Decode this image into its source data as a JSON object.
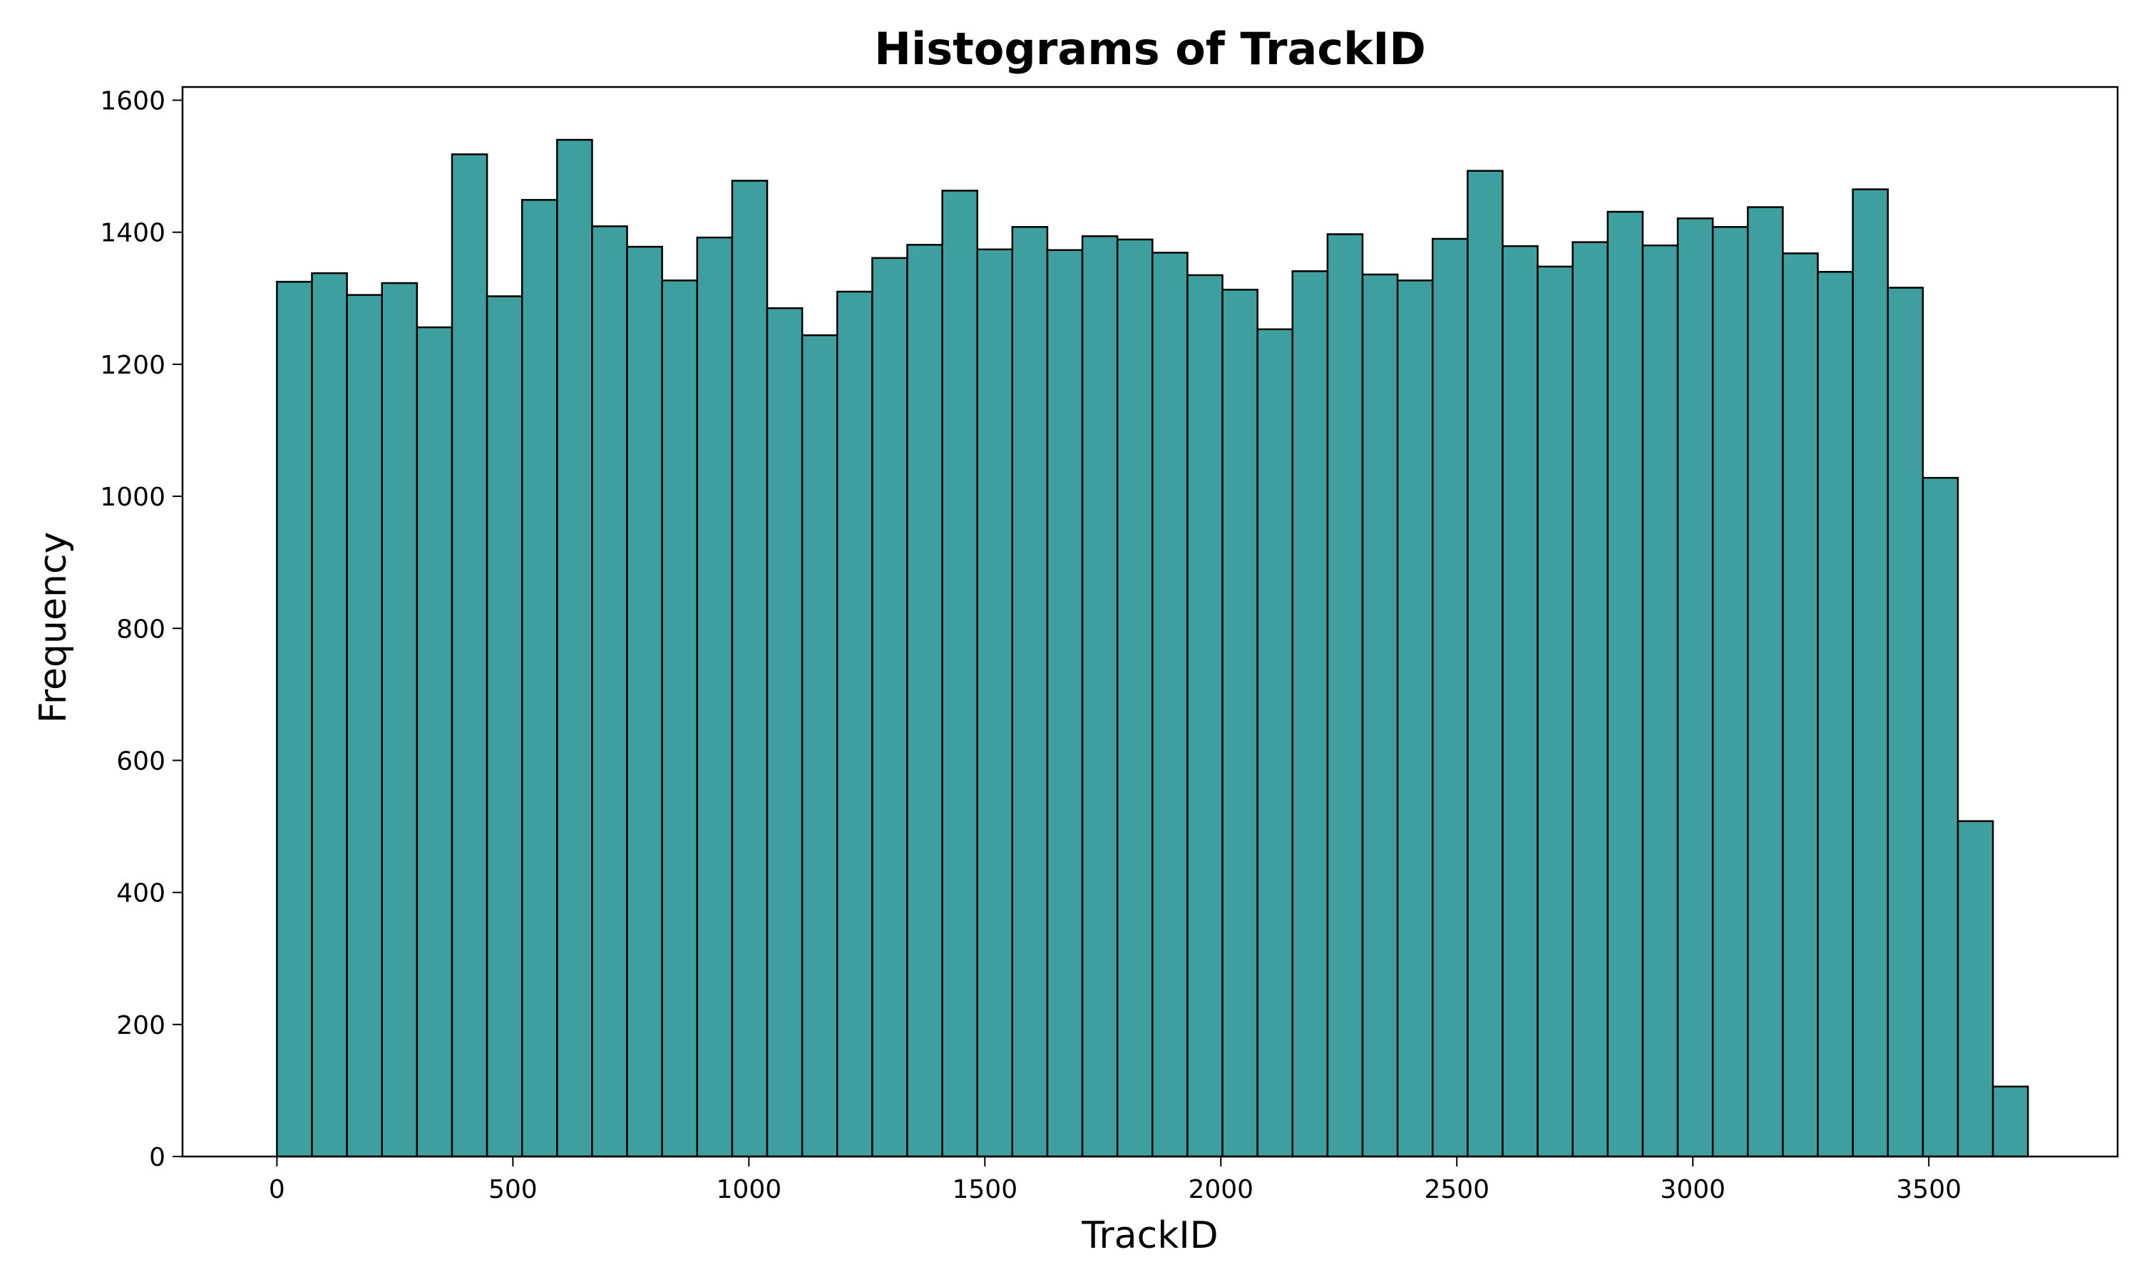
{
  "chart_data": {
    "type": "bar",
    "title": "Histograms of TrackID",
    "xlabel": "TrackID",
    "ylabel": "Frequency",
    "xlim": [
      -200,
      3900
    ],
    "ylim": [
      0,
      1620
    ],
    "xticks": [
      0,
      500,
      1000,
      1500,
      2000,
      2500,
      3000,
      3500
    ],
    "xtick_labels": [
      "0",
      "500",
      "1000",
      "1500",
      "2000",
      "2500",
      "3000",
      "3500"
    ],
    "yticks": [
      0,
      200,
      400,
      600,
      800,
      1000,
      1200,
      1400,
      1600
    ],
    "ytick_labels": [
      "0",
      "200",
      "400",
      "600",
      "800",
      "1000",
      "1200",
      "1400",
      "1600"
    ],
    "bin_start": 0,
    "bin_width": 74.2,
    "values": [
      1325,
      1338,
      1305,
      1323,
      1256,
      1518,
      1303,
      1449,
      1540,
      1409,
      1378,
      1327,
      1392,
      1478,
      1285,
      1244,
      1310,
      1361,
      1381,
      1463,
      1374,
      1408,
      1373,
      1394,
      1389,
      1369,
      1335,
      1313,
      1253,
      1341,
      1397,
      1336,
      1327,
      1390,
      1493,
      1379,
      1348,
      1385,
      1431,
      1380,
      1421,
      1408,
      1438,
      1368,
      1340,
      1465,
      1316,
      1028,
      508,
      106
    ],
    "bar_color": "#3f9f9f",
    "edge_color": "#000000",
    "grid": false,
    "legend": "none"
  }
}
